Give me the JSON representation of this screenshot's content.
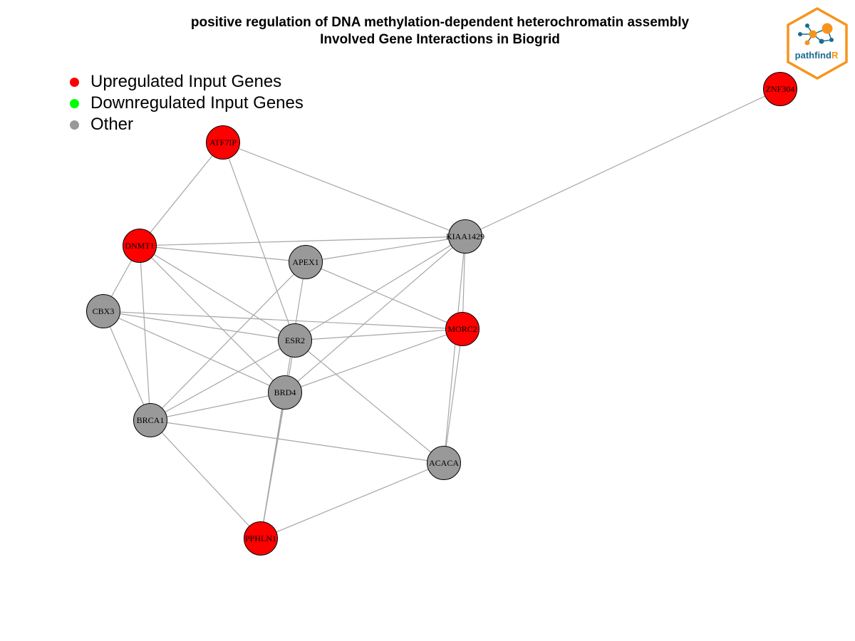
{
  "title": {
    "line1": "positive regulation of DNA methylation-dependent heterochromatin assembly",
    "line2": "Involved Gene Interactions in Biogrid"
  },
  "legend": [
    {
      "label": "Upregulated Input Genes",
      "color": "#ff0000"
    },
    {
      "label": "Downregulated Input Genes",
      "color": "#00ff00"
    },
    {
      "label": "Other",
      "color": "#999999"
    }
  ],
  "logo": {
    "text_main": "pathfind",
    "text_accent": "R",
    "border_color": "#f7941d",
    "text_color": "#1b6c8f"
  },
  "colors": {
    "up": "#ff0000",
    "down": "#00ff00",
    "other": "#999999",
    "edge": "#a6a6a6"
  },
  "nodes": [
    {
      "id": "ZNF304",
      "status": "up"
    },
    {
      "id": "ATF7IP",
      "status": "up"
    },
    {
      "id": "KIAA1429",
      "status": "other"
    },
    {
      "id": "DNMT1",
      "status": "up"
    },
    {
      "id": "APEX1",
      "status": "other"
    },
    {
      "id": "CBX3",
      "status": "other"
    },
    {
      "id": "MORC2",
      "status": "up"
    },
    {
      "id": "ESR2",
      "status": "other"
    },
    {
      "id": "BRD4",
      "status": "other"
    },
    {
      "id": "BRCA1",
      "status": "other"
    },
    {
      "id": "ACACA",
      "status": "other"
    },
    {
      "id": "PPHLN1",
      "status": "up"
    }
  ],
  "edges": [
    [
      "ZNF304",
      "KIAA1429"
    ],
    [
      "ATF7IP",
      "KIAA1429"
    ],
    [
      "ATF7IP",
      "DNMT1"
    ],
    [
      "ATF7IP",
      "ESR2"
    ],
    [
      "DNMT1",
      "KIAA1429"
    ],
    [
      "DNMT1",
      "APEX1"
    ],
    [
      "DNMT1",
      "CBX3"
    ],
    [
      "DNMT1",
      "BRD4"
    ],
    [
      "DNMT1",
      "BRCA1"
    ],
    [
      "DNMT1",
      "ESR2"
    ],
    [
      "APEX1",
      "KIAA1429"
    ],
    [
      "APEX1",
      "MORC2"
    ],
    [
      "APEX1",
      "BRCA1"
    ],
    [
      "APEX1",
      "PPHLN1"
    ],
    [
      "KIAA1429",
      "MORC2"
    ],
    [
      "KIAA1429",
      "ESR2"
    ],
    [
      "KIAA1429",
      "BRD4"
    ],
    [
      "KIAA1429",
      "ACACA"
    ],
    [
      "CBX3",
      "MORC2"
    ],
    [
      "CBX3",
      "ESR2"
    ],
    [
      "CBX3",
      "BRD4"
    ],
    [
      "CBX3",
      "BRCA1"
    ],
    [
      "ESR2",
      "MORC2"
    ],
    [
      "ESR2",
      "BRCA1"
    ],
    [
      "ESR2",
      "ACACA"
    ],
    [
      "ESR2",
      "PPHLN1"
    ],
    [
      "BRD4",
      "MORC2"
    ],
    [
      "BRD4",
      "BRCA1"
    ],
    [
      "BRD4",
      "PPHLN1"
    ],
    [
      "MORC2",
      "ACACA"
    ],
    [
      "BRCA1",
      "ACACA"
    ],
    [
      "BRCA1",
      "PPHLN1"
    ],
    [
      "ACACA",
      "PPHLN1"
    ]
  ]
}
